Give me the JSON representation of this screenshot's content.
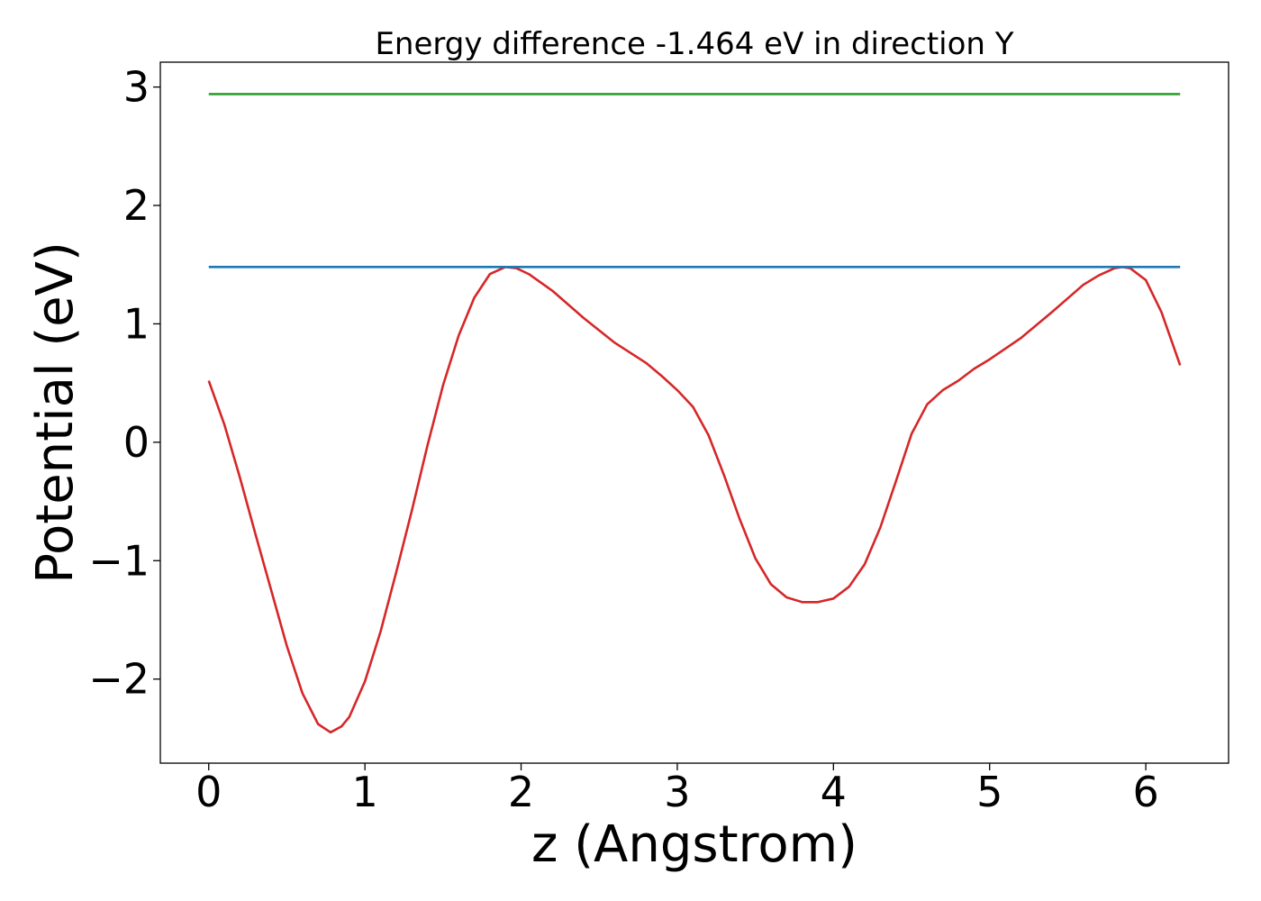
{
  "chart_data": {
    "type": "line",
    "title": "Energy difference -1.464 eV in direction Y",
    "xlabel": "z (Angstrom)",
    "ylabel": "Potential (eV)",
    "xlim": [
      -0.31,
      6.53
    ],
    "ylim": [
      -2.71,
      3.21
    ],
    "xticks": [
      0,
      1,
      2,
      3,
      4,
      5,
      6
    ],
    "xtick_labels": [
      "0",
      "1",
      "2",
      "3",
      "4",
      "5",
      "6"
    ],
    "yticks": [
      -2,
      -1,
      0,
      1,
      2,
      3
    ],
    "ytick_labels": [
      "−2",
      "−1",
      "0",
      "1",
      "2",
      "3"
    ],
    "grid": false,
    "series": [
      {
        "color": "#d62728",
        "x": [
          0.0,
          0.1,
          0.2,
          0.3,
          0.4,
          0.5,
          0.6,
          0.7,
          0.78,
          0.85,
          0.9,
          1.0,
          1.1,
          1.2,
          1.3,
          1.4,
          1.5,
          1.6,
          1.7,
          1.8,
          1.9,
          1.97,
          2.05,
          2.2,
          2.4,
          2.6,
          2.8,
          2.9,
          3.0,
          3.1,
          3.2,
          3.3,
          3.4,
          3.5,
          3.6,
          3.7,
          3.8,
          3.9,
          4.0,
          4.1,
          4.2,
          4.3,
          4.4,
          4.5,
          4.6,
          4.7,
          4.8,
          4.9,
          5.0,
          5.2,
          5.4,
          5.6,
          5.7,
          5.8,
          5.85,
          5.9,
          6.0,
          6.1,
          6.22
        ],
        "y": [
          0.52,
          0.15,
          -0.3,
          -0.78,
          -1.25,
          -1.72,
          -2.12,
          -2.38,
          -2.45,
          -2.4,
          -2.32,
          -2.02,
          -1.6,
          -1.1,
          -0.58,
          -0.03,
          0.48,
          0.9,
          1.22,
          1.42,
          1.48,
          1.47,
          1.42,
          1.28,
          1.05,
          0.84,
          0.67,
          0.56,
          0.44,
          0.3,
          0.06,
          -0.28,
          -0.65,
          -0.98,
          -1.2,
          -1.31,
          -1.35,
          -1.35,
          -1.32,
          -1.22,
          -1.03,
          -0.72,
          -0.33,
          0.07,
          0.32,
          0.44,
          0.52,
          0.62,
          0.7,
          0.88,
          1.1,
          1.33,
          1.41,
          1.47,
          1.48,
          1.47,
          1.37,
          1.1,
          0.65
        ]
      },
      {
        "color": "#1f77b4",
        "x": [
          0.0,
          6.22
        ],
        "y": [
          1.48,
          1.48
        ]
      },
      {
        "color": "#2ca02c",
        "x": [
          0.0,
          6.22
        ],
        "y": [
          2.94,
          2.94
        ]
      }
    ]
  }
}
